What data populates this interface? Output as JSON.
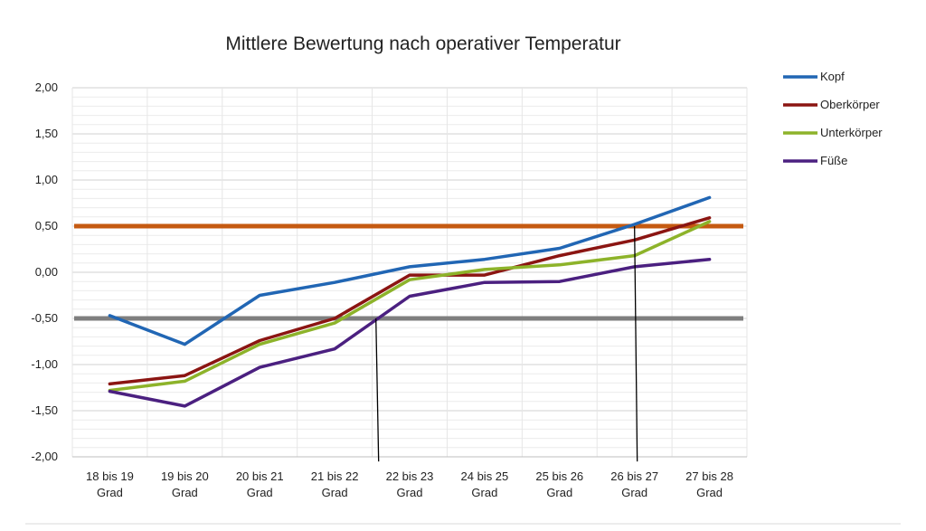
{
  "chart_data": {
    "type": "line",
    "title": "Mittlere Bewertung nach operativer Temperatur",
    "xlabel": "",
    "ylabel": "",
    "categories": [
      [
        "18 bis 19",
        "Grad"
      ],
      [
        "19 bis 20",
        "Grad"
      ],
      [
        "20 bis 21",
        "Grad"
      ],
      [
        "21 bis 22",
        "Grad"
      ],
      [
        "22 bis 23",
        "Grad"
      ],
      [
        "24 bis 25",
        "Grad"
      ],
      [
        "25 bis 26",
        "Grad"
      ],
      [
        "26 bis 27",
        "Grad"
      ],
      [
        "27 bis 28",
        "Grad"
      ]
    ],
    "ylim": [
      -2.0,
      2.0
    ],
    "yticks": [
      "2,00",
      "1,50",
      "1,00",
      "0,50",
      "0,00",
      "-0,50",
      "-1,00",
      "-1,50",
      "-2,00"
    ],
    "ytick_values": [
      2.0,
      1.5,
      1.0,
      0.5,
      0.0,
      -0.5,
      -1.0,
      -1.5,
      -2.0
    ],
    "grid": true,
    "legend_position": "right",
    "series": [
      {
        "name": "Kopf",
        "color": "#2166b4",
        "values": [
          -0.47,
          -0.78,
          -0.25,
          -0.11,
          0.06,
          0.14,
          0.26,
          0.52,
          0.81
        ]
      },
      {
        "name": "Oberkörper",
        "color": "#8b1512",
        "values": [
          -1.21,
          -1.12,
          -0.74,
          -0.5,
          -0.03,
          -0.03,
          0.18,
          0.35,
          0.59
        ]
      },
      {
        "name": "Unterkörper",
        "color": "#8db32a",
        "values": [
          -1.28,
          -1.18,
          -0.78,
          -0.55,
          -0.08,
          0.03,
          0.08,
          0.18,
          0.55
        ]
      },
      {
        "name": "Füße",
        "color": "#4b2080",
        "values": [
          -1.29,
          -1.45,
          -1.03,
          -0.83,
          -0.26,
          -0.11,
          -0.1,
          0.06,
          0.14
        ]
      }
    ],
    "reference_lines": [
      {
        "y": 0.5,
        "color": "#c55a11"
      },
      {
        "y": -0.5,
        "color": "#7f7f7f"
      }
    ],
    "marker_lines": [
      {
        "x_category_index": 3.55,
        "y_top": -0.5,
        "y_bottom": -2.05,
        "color": "#000000"
      },
      {
        "x_category_index": 7.0,
        "y_top": 0.5,
        "y_bottom": -2.05,
        "color": "#000000"
      }
    ]
  }
}
